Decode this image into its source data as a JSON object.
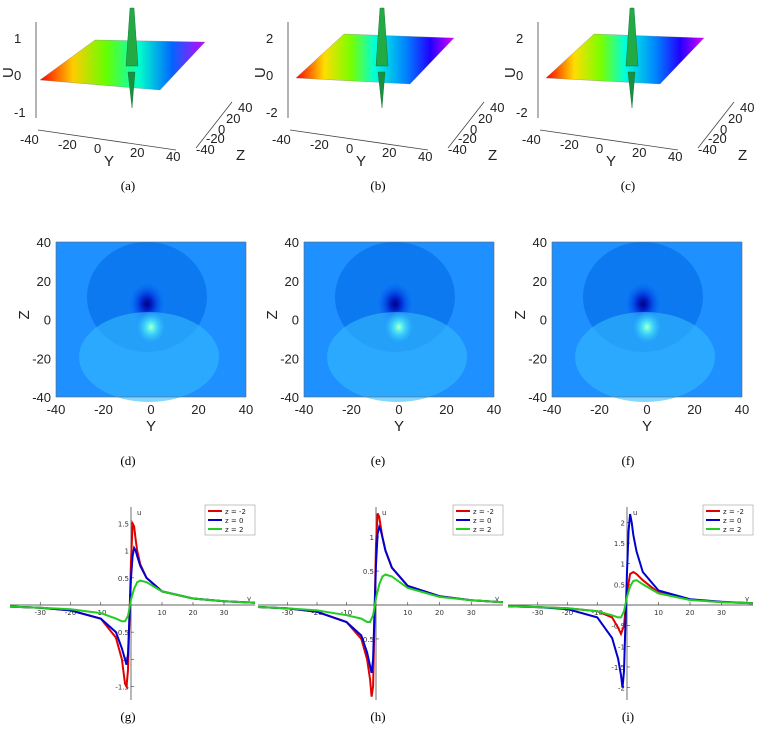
{
  "figure": {
    "captions": [
      "(a)",
      "(b)",
      "(c)",
      "(d)",
      "(e)",
      "(f)",
      "(g)",
      "(h)",
      "(i)"
    ]
  },
  "surface_panels": [
    {
      "id": "a",
      "zlabel": "U",
      "xlabel": "Y",
      "ylabel": "Z",
      "u_ticks": [
        "1",
        "0",
        "-1"
      ],
      "y_ticks": [
        "-40",
        "-20",
        "0",
        "20",
        "40"
      ],
      "z_ticks": [
        "40",
        "20",
        "0",
        "-20",
        "-40"
      ]
    },
    {
      "id": "b",
      "zlabel": "U",
      "xlabel": "Y",
      "ylabel": "Z",
      "u_ticks": [
        "2",
        "0",
        "-2"
      ],
      "y_ticks": [
        "-40",
        "-20",
        "0",
        "20",
        "40"
      ],
      "z_ticks": [
        "40",
        "20",
        "0",
        "-20",
        "-40"
      ]
    },
    {
      "id": "c",
      "zlabel": "U",
      "xlabel": "Y",
      "ylabel": "Z",
      "u_ticks": [
        "2",
        "0",
        "-2"
      ],
      "y_ticks": [
        "-40",
        "-20",
        "0",
        "20",
        "40"
      ],
      "z_ticks": [
        "40",
        "20",
        "0",
        "-20",
        "-40"
      ]
    }
  ],
  "contour_panels": [
    {
      "id": "d",
      "xlabel": "Y",
      "ylabel": "Z",
      "x_ticks": [
        "-40",
        "-20",
        "0",
        "20",
        "40"
      ],
      "y_ticks": [
        "40",
        "20",
        "0",
        "-20",
        "-40"
      ]
    },
    {
      "id": "e",
      "xlabel": "Y",
      "ylabel": "Z",
      "x_ticks": [
        "-40",
        "-20",
        "0",
        "20",
        "40"
      ],
      "y_ticks": [
        "40",
        "20",
        "0",
        "-20",
        "-40"
      ]
    },
    {
      "id": "f",
      "xlabel": "Y",
      "ylabel": "Z",
      "x_ticks": [
        "-40",
        "-20",
        "0",
        "20",
        "40"
      ],
      "y_ticks": [
        "40",
        "20",
        "0",
        "-20",
        "-40"
      ]
    }
  ],
  "chart_data": [
    {
      "id": "g",
      "type": "line",
      "xlabel": "y",
      "ylabel": "u",
      "x_ticks": [
        "-30",
        "-20",
        "-10",
        "10",
        "20",
        "30"
      ],
      "y_ticks": [
        "1.5",
        "1",
        "0.5",
        "-0.5",
        "-1",
        "-1.5"
      ],
      "xlim": [
        -40,
        40
      ],
      "ylim": [
        -1.75,
        1.75
      ],
      "series": [
        {
          "name": "z = -2",
          "color": "#e00000",
          "x": [
            -40,
            -30,
            -20,
            -10,
            -5,
            -3,
            -2,
            -1.5,
            -1,
            -0.5,
            0,
            0.5,
            1,
            1.5,
            2,
            3,
            5,
            10,
            20,
            30,
            40
          ],
          "y": [
            -0.03,
            -0.05,
            -0.1,
            -0.25,
            -0.6,
            -1.0,
            -1.45,
            -1.5,
            -1.2,
            -0.2,
            0.8,
            1.5,
            1.45,
            1.2,
            1.0,
            0.75,
            0.5,
            0.25,
            0.12,
            0.07,
            0.04
          ]
        },
        {
          "name": "z = 0",
          "color": "#0000d0",
          "x": [
            -40,
            -30,
            -20,
            -10,
            -5,
            -3,
            -2,
            -1.5,
            -1,
            -0.5,
            0,
            0.5,
            1,
            1.5,
            2,
            3,
            5,
            10,
            20,
            30,
            40
          ],
          "y": [
            -0.03,
            -0.05,
            -0.1,
            -0.25,
            -0.5,
            -0.8,
            -1.0,
            -1.1,
            -0.9,
            -0.2,
            0.5,
            0.9,
            1.05,
            1.0,
            0.9,
            0.72,
            0.5,
            0.25,
            0.12,
            0.07,
            0.04
          ]
        },
        {
          "name": "z = 2",
          "color": "#22cc22",
          "x": [
            -40,
            -30,
            -20,
            -10,
            -5,
            -3,
            -2,
            -1,
            0,
            1,
            2,
            3,
            5,
            10,
            20,
            30,
            40
          ],
          "y": [
            -0.03,
            -0.05,
            -0.08,
            -0.15,
            -0.25,
            -0.3,
            -0.3,
            -0.2,
            0.1,
            0.3,
            0.42,
            0.45,
            0.42,
            0.25,
            0.12,
            0.07,
            0.04
          ]
        }
      ]
    },
    {
      "id": "h",
      "type": "line",
      "xlabel": "y",
      "ylabel": "u",
      "x_ticks": [
        "-30",
        "-20",
        "-10",
        "10",
        "20",
        "30"
      ],
      "y_ticks": [
        "1",
        "0.5",
        "-0.5"
      ],
      "xlim": [
        -40,
        40
      ],
      "ylim": [
        -1.4,
        1.4
      ],
      "series": [
        {
          "name": "z = -2",
          "color": "#e00000",
          "x": [
            -40,
            -30,
            -20,
            -10,
            -5,
            -3,
            -2,
            -1.5,
            -1,
            -0.5,
            0,
            0.5,
            1,
            1.5,
            2,
            3,
            5,
            10,
            20,
            30,
            40
          ],
          "y": [
            -0.03,
            -0.05,
            -0.1,
            -0.25,
            -0.5,
            -0.8,
            -1.1,
            -1.35,
            -1.2,
            -0.2,
            0.9,
            1.35,
            1.3,
            1.15,
            1.0,
            0.8,
            0.55,
            0.28,
            0.13,
            0.07,
            0.04
          ]
        },
        {
          "name": "z = 0",
          "color": "#0000d0",
          "x": [
            -40,
            -30,
            -20,
            -10,
            -5,
            -3,
            -2,
            -1.5,
            -1,
            -0.5,
            0,
            0.5,
            1,
            1.5,
            2,
            3,
            5,
            10,
            20,
            30,
            40
          ],
          "y": [
            -0.03,
            -0.05,
            -0.1,
            -0.25,
            -0.45,
            -0.7,
            -0.9,
            -1.0,
            -0.8,
            -0.1,
            0.6,
            1.05,
            1.15,
            1.1,
            1.0,
            0.8,
            0.55,
            0.28,
            0.13,
            0.07,
            0.04
          ]
        },
        {
          "name": "z = 2",
          "color": "#22cc22",
          "x": [
            -40,
            -30,
            -20,
            -10,
            -5,
            -3,
            -2,
            -1,
            0,
            1,
            2,
            3,
            5,
            10,
            20,
            30,
            40
          ],
          "y": [
            -0.03,
            -0.05,
            -0.08,
            -0.15,
            -0.2,
            -0.25,
            -0.25,
            -0.15,
            0.1,
            0.3,
            0.42,
            0.45,
            0.42,
            0.25,
            0.12,
            0.07,
            0.04
          ]
        }
      ]
    },
    {
      "id": "i",
      "type": "line",
      "xlabel": "y",
      "ylabel": "u",
      "x_ticks": [
        "-30",
        "-20",
        "-10",
        "10",
        "20",
        "30"
      ],
      "y_ticks": [
        "2",
        "1.5",
        "1",
        "0.5",
        "-0.5",
        "-1",
        "-1.5",
        "-2"
      ],
      "xlim": [
        -40,
        40
      ],
      "ylim": [
        -2.3,
        2.3
      ],
      "series": [
        {
          "name": "z = -2",
          "color": "#e00000",
          "x": [
            -40,
            -30,
            -20,
            -10,
            -5,
            -3,
            -2,
            -1,
            0,
            1,
            2,
            3,
            5,
            10,
            20,
            30,
            40
          ],
          "y": [
            -0.03,
            -0.05,
            -0.08,
            -0.15,
            -0.3,
            -0.55,
            -0.7,
            -0.5,
            0.3,
            0.75,
            0.8,
            0.75,
            0.6,
            0.3,
            0.13,
            0.07,
            0.04
          ]
        },
        {
          "name": "z = 0",
          "color": "#0000d0",
          "x": [
            -40,
            -30,
            -20,
            -10,
            -5,
            -3,
            -2,
            -1.5,
            -1,
            -0.5,
            0,
            0.5,
            1,
            1.5,
            2,
            3,
            5,
            10,
            20,
            30,
            40
          ],
          "y": [
            -0.03,
            -0.05,
            -0.1,
            -0.3,
            -0.8,
            -1.3,
            -1.7,
            -2.0,
            -1.6,
            -0.4,
            0.8,
            1.8,
            2.2,
            2.0,
            1.7,
            1.3,
            0.8,
            0.35,
            0.14,
            0.08,
            0.04
          ]
        },
        {
          "name": "z = 2",
          "color": "#22cc22",
          "x": [
            -40,
            -30,
            -20,
            -10,
            -5,
            -3,
            -2,
            -1,
            0,
            1,
            2,
            3,
            5,
            10,
            20,
            30,
            40
          ],
          "y": [
            -0.03,
            -0.05,
            -0.08,
            -0.15,
            -0.25,
            -0.3,
            -0.3,
            -0.15,
            0.2,
            0.45,
            0.58,
            0.6,
            0.5,
            0.28,
            0.12,
            0.07,
            0.04
          ]
        }
      ]
    }
  ]
}
